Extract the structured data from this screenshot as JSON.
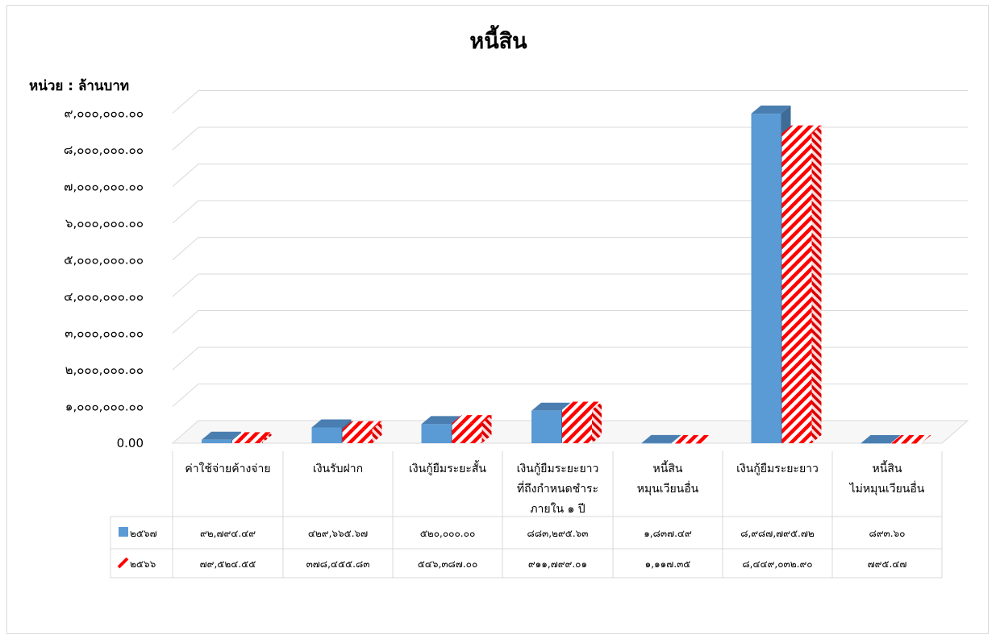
{
  "chart_data": {
    "type": "bar",
    "title": "หนี้สิน",
    "unit_label": "หน่วย : ล้านบาท",
    "ylim": [
      0,
      9000000
    ],
    "y_ticks": [
      "0.00",
      "๑,๐๐๐,๐๐๐.๐๐",
      "๒,๐๐๐,๐๐๐.๐๐",
      "๓,๐๐๐,๐๐๐.๐๐",
      "๔,๐๐๐,๐๐๐.๐๐",
      "๕,๐๐๐,๐๐๐.๐๐",
      "๖,๐๐๐,๐๐๐.๐๐",
      "๗,๐๐๐,๐๐๐.๐๐",
      "๘,๐๐๐,๐๐๐.๐๐",
      "๙,๐๐๐,๐๐๐.๐๐"
    ],
    "categories": [
      [
        "ค่าใช้จ่ายค้างจ่าย"
      ],
      [
        "เงินรับฝาก"
      ],
      [
        "เงินกู้ยืมระยะสั้น"
      ],
      [
        "เงินกู้ยืมระยะยาว",
        "ที่ถึงกำหนดชำระ",
        "ภายใน ๑ ปี"
      ],
      [
        "หนี้สิน",
        "หมุนเวียนอื่น"
      ],
      [
        "เงินกู้ยืมระยะยาว"
      ],
      [
        "หนี้สิน",
        "ไม่หมุนเวียนอื่น"
      ]
    ],
    "series": [
      {
        "name": "๒๕๖๗",
        "color": "#5b9bd5",
        "pattern": "solid",
        "values": [
          92794.49,
          429665.67,
          520000.0,
          883295.63,
          1837.49,
          8987795.72,
          893.6
        ],
        "labels": [
          "๙๒,๗๙๔.๔๙",
          "๔๒๙,๖๖๕.๖๗",
          "๕๒๐,๐๐๐.๐๐",
          "๘๘๓,๒๙๕.๖๓",
          "๑,๘๓๗.๔๙",
          "๘,๙๘๗,๗๙๕.๗๒",
          "๘๙๓.๖๐"
        ]
      },
      {
        "name": "๒๕๖๖",
        "color": "#ff0000",
        "pattern": "diagonal-stripes",
        "values": [
          79524.55,
          378455.83,
          546387.0,
          911799.01,
          1117.35,
          8449032.9,
          795.47
        ],
        "labels": [
          "๗๙,๕๒๔.๕๕",
          "๓๗๘,๔๕๕.๘๓",
          "๕๔๖,๓๘๗.๐๐",
          "๙๑๑,๗๙๙.๐๑",
          "๑,๑๑๗.๓๕",
          "๘,๔๔๙,๐๓๒.๙๐",
          "๗๙๕.๔๗"
        ]
      }
    ],
    "grid": true,
    "legend": "data-table"
  }
}
